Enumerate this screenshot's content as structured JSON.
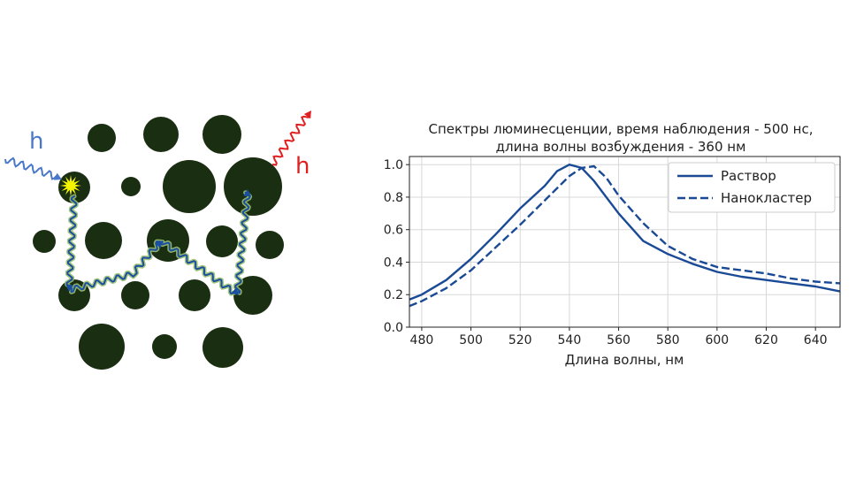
{
  "diagram": {
    "incoming_label": "h",
    "outgoing_label": "h",
    "incoming_color": "#4a78c8",
    "outgoing_color": "#e02020",
    "particle_color": "#1a2e12",
    "path_color": "#1a4fa0",
    "path_glow_color": "#9cc070",
    "flash_color": "#f5f500"
  },
  "chart_data": {
    "type": "line",
    "title": "Спектры люминесценции, время наблюдения - 500 нс,",
    "subtitle": "длина волны возбуждения - 360 нм",
    "xlabel": "Длина волны, нм",
    "ylabel": "",
    "xlim": [
      475,
      650
    ],
    "ylim": [
      0,
      1.05
    ],
    "xticks": [
      480,
      500,
      520,
      540,
      560,
      580,
      600,
      620,
      640
    ],
    "yticks": [
      "0.0",
      "0.2",
      "0.4",
      "0.6",
      "0.8",
      "1.0"
    ],
    "grid": true,
    "legend_position": "top-right",
    "line_color": "#1a4a96",
    "series": [
      {
        "name": "Раствор",
        "style": "solid",
        "x": [
          475,
          480,
          490,
          500,
          510,
          520,
          530,
          535,
          540,
          545,
          550,
          560,
          570,
          580,
          590,
          600,
          610,
          620,
          630,
          640,
          650
        ],
        "y": [
          0.17,
          0.2,
          0.29,
          0.42,
          0.57,
          0.73,
          0.87,
          0.96,
          1.0,
          0.98,
          0.9,
          0.7,
          0.53,
          0.45,
          0.39,
          0.34,
          0.31,
          0.29,
          0.27,
          0.25,
          0.22
        ]
      },
      {
        "name": "Нанокластер",
        "style": "dashed",
        "x": [
          475,
          480,
          490,
          500,
          510,
          520,
          530,
          540,
          545,
          550,
          555,
          560,
          570,
          580,
          590,
          600,
          610,
          620,
          630,
          640,
          650
        ],
        "y": [
          0.13,
          0.16,
          0.24,
          0.35,
          0.49,
          0.63,
          0.78,
          0.93,
          0.98,
          0.99,
          0.92,
          0.81,
          0.64,
          0.5,
          0.42,
          0.37,
          0.35,
          0.33,
          0.3,
          0.28,
          0.27
        ]
      }
    ]
  }
}
